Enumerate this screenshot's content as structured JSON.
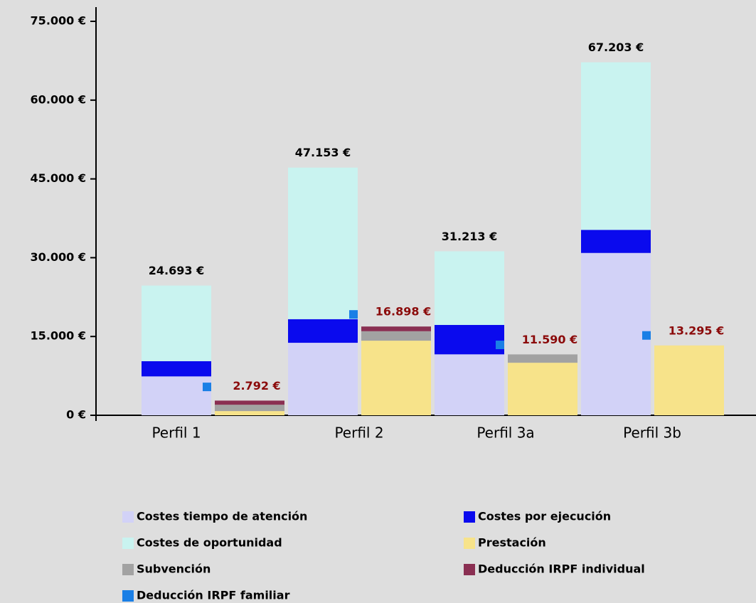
{
  "chart_data": {
    "type": "bar",
    "categories": [
      "Perfil 1",
      "Perfil 2",
      "Perfil 3a",
      "Perfil 3b"
    ],
    "series": [
      {
        "name": "Costes tiempo de atención",
        "color": "#d2d2f7",
        "stack": "left",
        "values": [
          7400,
          13800,
          11600,
          30900
        ]
      },
      {
        "name": "Costes por ejecución",
        "color": "#0a0aee",
        "stack": "left",
        "values": [
          2900,
          4500,
          5600,
          4400
        ]
      },
      {
        "name": "Costes de oportunidad",
        "color": "#c9f3f0",
        "stack": "left",
        "values": [
          14393,
          28853,
          14013,
          31903
        ]
      },
      {
        "name": "Prestación",
        "color": "#f7e38a",
        "stack": "right",
        "values": [
          800,
          14200,
          10000,
          13295
        ]
      },
      {
        "name": "Subvención",
        "color": "#a2a2a2",
        "stack": "right",
        "values": [
          1200,
          1800,
          1590,
          0
        ]
      },
      {
        "name": "Deducción IRPF individual",
        "color": "#8a2f52",
        "stack": "right",
        "values": [
          792,
          898,
          0,
          0
        ]
      },
      {
        "name": "Deducción IRPF familiar",
        "color": "#1a7fe6",
        "stack": "marker",
        "values": [
          5400,
          19200,
          13400,
          15200
        ]
      }
    ],
    "left_totals": [
      {
        "value": 24693,
        "label": "24.693 €"
      },
      {
        "value": 47153,
        "label": "47.153 €"
      },
      {
        "value": 31213,
        "label": "31.213 €"
      },
      {
        "value": 67203,
        "label": "67.203 €"
      }
    ],
    "right_totals": [
      {
        "value": 2792,
        "label": "2.792 €"
      },
      {
        "value": 16898,
        "label": "16.898 €"
      },
      {
        "value": 11590,
        "label": "11.590 €"
      },
      {
        "value": 13295,
        "label": "13.295 €"
      }
    ],
    "ylim": [
      0,
      75000
    ],
    "yticks": [
      {
        "value": 0,
        "label": "0 €"
      },
      {
        "value": 15000,
        "label": "15.000 €"
      },
      {
        "value": 30000,
        "label": "30.000 €"
      },
      {
        "value": 45000,
        "label": "45.000 €"
      },
      {
        "value": 60000,
        "label": "60.000 €"
      },
      {
        "value": 75000,
        "label": "75.000 €"
      }
    ],
    "grid": false
  }
}
